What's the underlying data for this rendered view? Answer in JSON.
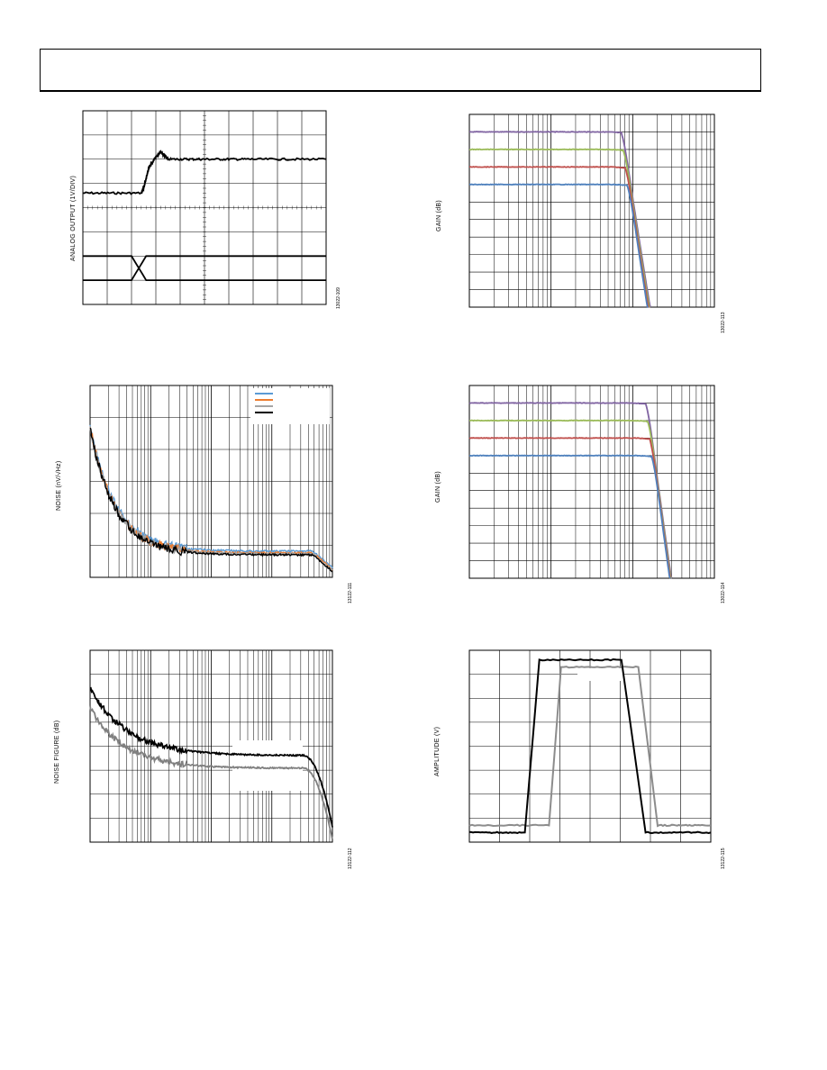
{
  "page": {
    "header_text": ""
  },
  "figures": [
    {
      "id": "fig-1",
      "ylabel": "ANALOG OUTPUT (1V/DIV)",
      "fig_id": "13022-109"
    },
    {
      "id": "fig-2",
      "ylabel": "GAIN (dB)",
      "fig_id": "13022-113"
    },
    {
      "id": "fig-3",
      "ylabel": "NOISE (nV/√Hz)",
      "fig_id": "13122-111"
    },
    {
      "id": "fig-4",
      "ylabel": "GAIN (dB)",
      "fig_id": "13022-114"
    },
    {
      "id": "fig-5",
      "ylabel": "NOISE FIGURE (dB)",
      "fig_id": "13122-112"
    },
    {
      "id": "fig-6",
      "ylabel": "AMPLITUDE (V)",
      "fig_id": "13122-115"
    }
  ],
  "chart_data": [
    {
      "type": "line",
      "title": "",
      "xlabel": "",
      "ylabel": "ANALOG OUTPUT (1V/DIV)",
      "x_scale": "linear",
      "xlim": [
        0,
        10
      ],
      "ylim": [
        0,
        8
      ],
      "series": [
        {
          "values_desc": "analog step",
          "color": "#000000",
          "points": [
            [
              0,
              4.6
            ],
            [
              2.4,
              4.6
            ],
            [
              2.5,
              4.8
            ],
            [
              2.7,
              5.6
            ],
            [
              3.0,
              6.1
            ],
            [
              3.2,
              6.3
            ],
            [
              3.5,
              6.0
            ],
            [
              5,
              6.0
            ],
            [
              7,
              6.0
            ],
            [
              10,
              6.0
            ]
          ]
        },
        {
          "color": "#000000",
          "points": [
            [
              0,
              2.0
            ],
            [
              2.0,
              2.0
            ],
            [
              2.6,
              1.0
            ],
            [
              3.0,
              1.0
            ],
            [
              10,
              1.0
            ]
          ]
        },
        {
          "color": "#000000",
          "points": [
            [
              0,
              1.0
            ],
            [
              2.0,
              1.0
            ],
            [
              2.6,
              2.0
            ],
            [
              3.0,
              2.0
            ],
            [
              10,
              2.0
            ]
          ]
        }
      ]
    },
    {
      "type": "line",
      "title": "",
      "xlabel": "",
      "ylabel": "GAIN (dB)",
      "x_scale": "log",
      "xlim": [
        1,
        1000
      ],
      "ylim": [
        0,
        11
      ],
      "series": [
        {
          "color": "#8064A2",
          "flat": 10.0
        },
        {
          "color": "#9BBB59",
          "flat": 9.0
        },
        {
          "color": "#C0504D",
          "flat": 8.0
        },
        {
          "color": "#4F81BD",
          "flat": 7.0
        }
      ]
    },
    {
      "type": "line",
      "title": "",
      "xlabel": "",
      "ylabel": "NOISE (nV/√Hz)",
      "x_scale": "log",
      "xlim": [
        1,
        10000
      ],
      "ylim": [
        0,
        6
      ],
      "series": [
        {
          "color": "#5B9BD5"
        },
        {
          "color": "#ED7D31"
        },
        {
          "color": "#A5A5A5"
        },
        {
          "color": "#000000"
        }
      ]
    },
    {
      "type": "line",
      "title": "",
      "xlabel": "",
      "ylabel": "GAIN (dB)",
      "x_scale": "log",
      "xlim": [
        1,
        1000
      ],
      "ylim": [
        0,
        11
      ],
      "series": [
        {
          "color": "#8064A2",
          "flat": 10.0
        },
        {
          "color": "#9BBB59",
          "flat": 9.0
        },
        {
          "color": "#C0504D",
          "flat": 8.0
        },
        {
          "color": "#4F81BD",
          "flat": 7.0
        }
      ]
    },
    {
      "type": "line",
      "title": "",
      "xlabel": "",
      "ylabel": "NOISE FIGURE (dB)",
      "x_scale": "log",
      "xlim": [
        1,
        10000
      ],
      "ylim": [
        0,
        8
      ],
      "series": [
        {
          "color": "#000000"
        },
        {
          "color": "#808080"
        }
      ]
    },
    {
      "type": "line",
      "title": "",
      "xlabel": "",
      "ylabel": "AMPLITUDE (V)",
      "x_scale": "linear",
      "xlim": [
        0,
        10
      ],
      "ylim": [
        0,
        8
      ],
      "series": [
        {
          "color": "#000000",
          "points": [
            [
              0,
              0.4
            ],
            [
              2.3,
              0.4
            ],
            [
              2.9,
              7.6
            ],
            [
              6.3,
              7.6
            ],
            [
              7.3,
              0.4
            ],
            [
              10,
              0.4
            ]
          ]
        },
        {
          "color": "#8C8C8C",
          "points": [
            [
              0,
              0.7
            ],
            [
              3.3,
              0.7
            ],
            [
              3.8,
              7.3
            ],
            [
              7.0,
              7.3
            ],
            [
              7.8,
              0.7
            ],
            [
              10,
              0.7
            ]
          ]
        }
      ]
    }
  ]
}
